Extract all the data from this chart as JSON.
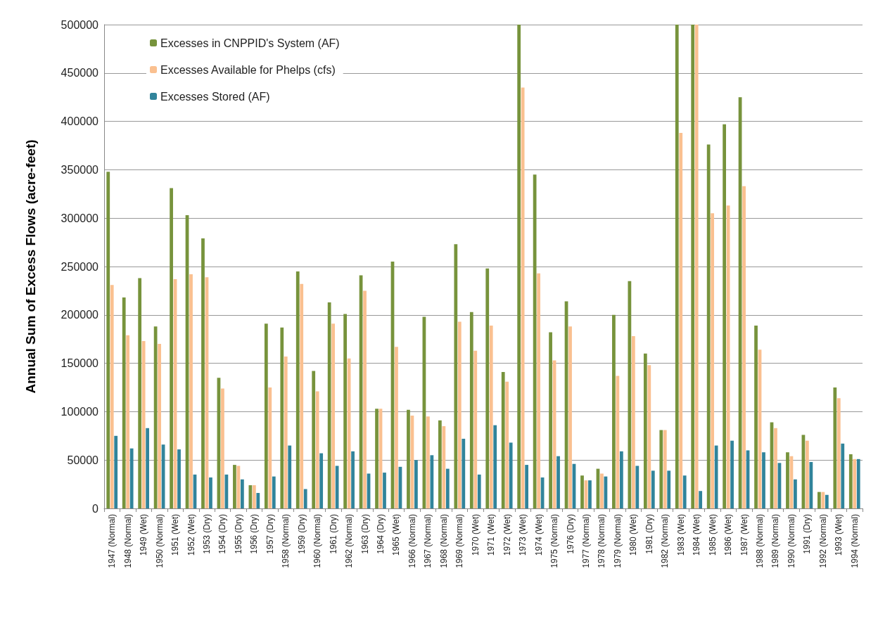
{
  "chart_data": {
    "type": "bar",
    "ylabel": "Annual Sum of Excess Flows (acre-feet)",
    "categories": [
      "1947 (Normal)",
      "1948 (Normal)",
      "1949 (Wet)",
      "1950 (Normal)",
      "1951 (Wet)",
      "1952 (Wet)",
      "1953 (Dry)",
      "1954 (Dry)",
      "1955 (Dry)",
      "1956 (Dry)",
      "1957 (Dry)",
      "1958 (Normal)",
      "1959 (Dry)",
      "1960 (Normal)",
      "1961 (Dry)",
      "1962 (Normal)",
      "1963 (Dry)",
      "1964 (Dry)",
      "1965 (Wet)",
      "1966 (Normal)",
      "1967 (Normal)",
      "1968 (Normal)",
      "1969 (Normal)",
      "1970 (Wet)",
      "1971 (Wet)",
      "1972 (Wet)",
      "1973 (Wet)",
      "1974 (Wet)",
      "1975 (Normal)",
      "1976 (Dry)",
      "1977 (Normal)",
      "1978 (Normal)",
      "1979 (Normal)",
      "1980 (Wet)",
      "1981 (Dry)",
      "1982 (Normal)",
      "1983 (Wet)",
      "1984 (Wet)",
      "1985 (Wet)",
      "1986 (Wet)",
      "1987 (Wet)",
      "1988 (Normal)",
      "1989 (Normal)",
      "1990 (Normal)",
      "1991 (Dry)",
      "1992 (Normal)",
      "1993 (Wet)",
      "1994 (Normal)"
    ],
    "series": [
      {
        "name": "Excesses in CNPPID's System (AF)",
        "color": "#77933c",
        "values": [
          348000,
          218000,
          238000,
          188000,
          331000,
          303000,
          279000,
          135000,
          45000,
          24000,
          191000,
          187000,
          245000,
          142000,
          213000,
          201000,
          241000,
          103000,
          255000,
          102000,
          198000,
          91000,
          273000,
          203000,
          248000,
          141000,
          500000,
          345000,
          182000,
          214000,
          34000,
          41000,
          200000,
          235000,
          160000,
          81000,
          500000,
          500000,
          376000,
          397000,
          425000,
          189000,
          89000,
          58000,
          76000,
          17000,
          125000,
          56000
        ]
      },
      {
        "name": "Excesses Available for Phelps (cfs)",
        "color": "#fac090",
        "values": [
          231000,
          179000,
          173000,
          170000,
          237000,
          242000,
          239000,
          124000,
          44000,
          24000,
          125000,
          157000,
          232000,
          121000,
          191000,
          155000,
          225000,
          103000,
          167000,
          96000,
          95000,
          85000,
          193000,
          163000,
          189000,
          131000,
          435000,
          243000,
          153000,
          188000,
          29000,
          36000,
          137000,
          178000,
          148000,
          81000,
          388000,
          500000,
          305000,
          313000,
          333000,
          164000,
          83000,
          54000,
          70000,
          17000,
          114000,
          51000
        ]
      },
      {
        "name": "Excesses Stored (AF)",
        "color": "#31849b",
        "values": [
          75000,
          62000,
          83000,
          66000,
          61000,
          35000,
          32000,
          35000,
          30000,
          16000,
          33000,
          65000,
          20000,
          57000,
          44000,
          59000,
          36000,
          37000,
          43000,
          50000,
          55000,
          41000,
          72000,
          35000,
          86000,
          68000,
          45000,
          32000,
          54000,
          46000,
          29000,
          33000,
          59000,
          44000,
          39000,
          39000,
          34000,
          18000,
          65000,
          70000,
          60000,
          58000,
          47000,
          30000,
          48000,
          14000,
          67000,
          51000
        ]
      }
    ],
    "ylim": [
      0,
      500000
    ],
    "yticks": [
      0,
      50000,
      100000,
      150000,
      200000,
      250000,
      300000,
      350000,
      400000,
      450000,
      500000
    ],
    "grid": "y",
    "legend": "top left"
  }
}
